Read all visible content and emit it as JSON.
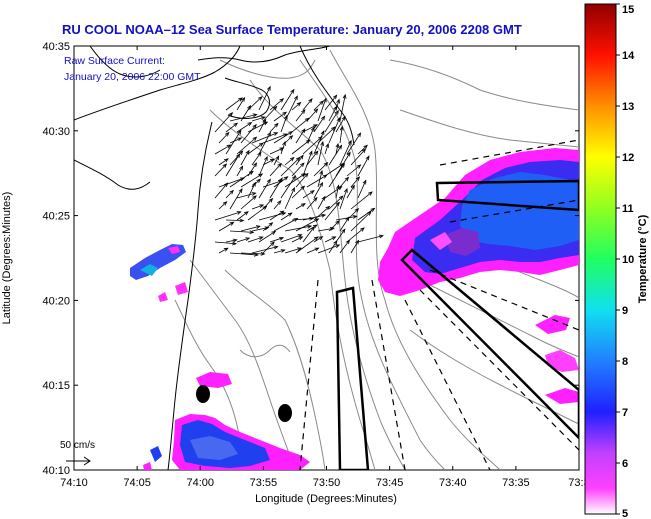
{
  "title": "RU COOL  NOAA–12  Sea Surface Temperature:  January 20, 2006 2208 GMT",
  "annotation": {
    "line1": "Raw Surface Current:",
    "line2": "January 20, 2006 22:00 GMT"
  },
  "scale": {
    "label": "50 cm/s"
  },
  "axes": {
    "xlabel": "Longitude (Degrees:Minutes)",
    "ylabel": "Latitude (Degrees:Minutes)",
    "xticks": [
      "74:10",
      "74:05",
      "74:00",
      "73:55",
      "73:50",
      "73:45",
      "73:40",
      "73:35",
      "73:3"
    ],
    "yticks": [
      "40:35",
      "40:30",
      "40:25",
      "40:20",
      "40:15",
      "40:10"
    ]
  },
  "colorbar": {
    "label": "Temperature (°C)",
    "ticks": [
      "15",
      "14",
      "13",
      "12",
      "11",
      "10",
      "9",
      "8",
      "7",
      "6",
      "5"
    ],
    "range": [
      5,
      15
    ]
  },
  "colors": {
    "title": "#1010c8",
    "warm_patch": "#ff20ff",
    "cold_patch": "#2030f0",
    "land_line": "#000000",
    "contour": "#8a8a8a"
  }
}
